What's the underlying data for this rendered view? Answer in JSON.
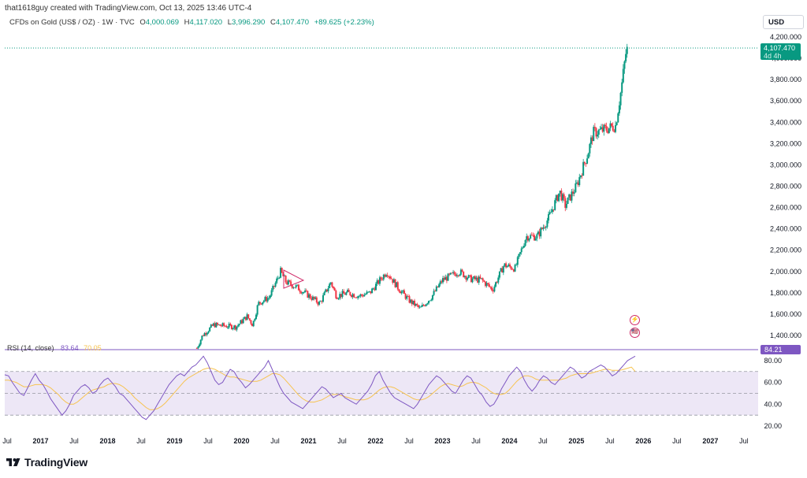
{
  "header": {
    "credit": "that1618guy created with TradingView.com, Oct 13, 2025 13:46 UTC-4",
    "symbol": "CFDs on Gold (US$ / OZ) · 1W · TVC",
    "ohlc": {
      "o_label": "O",
      "o": "4,000.069",
      "h_label": "H",
      "h": "4,117.020",
      "l_label": "L",
      "l": "3,996.290",
      "c_label": "C",
      "c": "4,107.470",
      "change": "+89.625 (+2.23%)"
    }
  },
  "currency_button": "USD",
  "last_price": {
    "value": "4,107.470",
    "countdown": "4d 4h"
  },
  "rsi": {
    "label": "RSI (14, close)",
    "value": "83.64",
    "ma_value": "70.05",
    "axis_value": "84.21"
  },
  "brand": {
    "name": "TradingView"
  },
  "events": [
    {
      "icon": "lightning-icon",
      "glyph": "⚡"
    },
    {
      "icon": "us-flag-icon",
      "glyph": "🇺🇸"
    }
  ],
  "colors": {
    "up": "#089981",
    "down": "#f23645",
    "rsi_line": "#7e57c2",
    "rsi_ma": "#f7c34f",
    "rsi_band": "#ede7f6"
  },
  "chart_data": [
    {
      "type": "candlestick",
      "title": "CFDs on Gold (US$ / OZ) · 1W · TVC",
      "ylabel": "USD",
      "ylim": [
        1300,
        4250
      ],
      "y_ticks": [
        "1,400.000",
        "1,600.000",
        "1,800.000",
        "2,000.000",
        "2,200.000",
        "2,400.000",
        "2,600.000",
        "2,800.000",
        "3,000.000",
        "3,200.000",
        "3,400.000",
        "3,600.000",
        "3,800.000",
        "4,000.000",
        "4,200.000"
      ],
      "x_ticks": [
        "Jul",
        "2017",
        "Jul",
        "2018",
        "Jul",
        "2019",
        "Jul",
        "2020",
        "Jul",
        "2021",
        "Jul",
        "2022",
        "Jul",
        "2023",
        "Jul",
        "2024",
        "Jul",
        "2025",
        "Jul",
        "2026",
        "Jul",
        "2027",
        "Jul"
      ],
      "x_range": [
        "2016-07",
        "2027-08"
      ],
      "first_date": "2019-05-06",
      "last_close": 4107.47,
      "price_path": [
        [
          "2019-05",
          1280
        ],
        [
          "2019-06",
          1400
        ],
        [
          "2019-08",
          1500
        ],
        [
          "2019-10",
          1490
        ],
        [
          "2019-12",
          1480
        ],
        [
          "2020-02",
          1580
        ],
        [
          "2020-03",
          1500
        ],
        [
          "2020-04",
          1700
        ],
        [
          "2020-06",
          1760
        ],
        [
          "2020-08",
          2000
        ],
        [
          "2020-09",
          1900
        ],
        [
          "2020-11",
          1850
        ],
        [
          "2021-03",
          1700
        ],
        [
          "2021-05",
          1900
        ],
        [
          "2021-06",
          1770
        ],
        [
          "2021-08",
          1800
        ],
        [
          "2021-10",
          1770
        ],
        [
          "2021-12",
          1800
        ],
        [
          "2022-03",
          2000
        ],
        [
          "2022-05",
          1850
        ],
        [
          "2022-07",
          1730
        ],
        [
          "2022-09",
          1650
        ],
        [
          "2022-11",
          1760
        ],
        [
          "2023-01",
          1920
        ],
        [
          "2023-04",
          2000
        ],
        [
          "2023-06",
          1930
        ],
        [
          "2023-08",
          1920
        ],
        [
          "2023-10",
          1830
        ],
        [
          "2023-12",
          2060
        ],
        [
          "2024-02",
          2030
        ],
        [
          "2024-04",
          2330
        ],
        [
          "2024-06",
          2330
        ],
        [
          "2024-08",
          2500
        ],
        [
          "2024-10",
          2750
        ],
        [
          "2024-11",
          2620
        ],
        [
          "2025-01",
          2800
        ],
        [
          "2025-03",
          3100
        ],
        [
          "2025-04",
          3300
        ],
        [
          "2025-06",
          3330
        ],
        [
          "2025-08",
          3370
        ],
        [
          "2025-09",
          3700
        ],
        [
          "2025-10",
          4107.47
        ]
      ]
    },
    {
      "type": "line",
      "title": "RSI (14, close)",
      "ylim": [
        15,
        90
      ],
      "y_ticks": [
        "20.00",
        "40.00",
        "60.00",
        "80.00"
      ],
      "levels": [
        70,
        50,
        30
      ],
      "series": [
        {
          "name": "RSI",
          "values": [
            67,
            66,
            60,
            55,
            50,
            48,
            55,
            62,
            68,
            62,
            58,
            52,
            45,
            40,
            35,
            30,
            34,
            40,
            48,
            52,
            56,
            58,
            55,
            50,
            52,
            58,
            62,
            64,
            60,
            56,
            50,
            48,
            44,
            40,
            36,
            32,
            28,
            26,
            30,
            34,
            40,
            46,
            52,
            58,
            62,
            66,
            68,
            66,
            70,
            74,
            76,
            80,
            84,
            78,
            70,
            62,
            58,
            60,
            66,
            72,
            70,
            64,
            60,
            55,
            58,
            62,
            66,
            70,
            74,
            80,
            72,
            64,
            56,
            50,
            46,
            42,
            40,
            38,
            36,
            40,
            44,
            48,
            52,
            56,
            54,
            50,
            46,
            48,
            50,
            46,
            44,
            42,
            40,
            44,
            48,
            52,
            58,
            66,
            70,
            62,
            56,
            50,
            46,
            44,
            42,
            40,
            38,
            36,
            40,
            46,
            52,
            58,
            62,
            66,
            64,
            60,
            56,
            52,
            50,
            56,
            62,
            66,
            64,
            58,
            52,
            48,
            42,
            38,
            40,
            46,
            54,
            60,
            66,
            70,
            74,
            70,
            62,
            56,
            52,
            56,
            62,
            66,
            64,
            60,
            58,
            62,
            66,
            70,
            74,
            72,
            68,
            64,
            66,
            70,
            72,
            74,
            76,
            74,
            70,
            66,
            68,
            72,
            76,
            80,
            82,
            84
          ]
        },
        {
          "name": "RSI MA",
          "values": [
            62,
            62,
            61,
            60,
            58,
            56,
            56,
            57,
            58,
            58,
            58,
            57,
            55,
            52,
            49,
            45,
            42,
            40,
            40,
            42,
            45,
            48,
            51,
            53,
            54,
            55,
            56,
            58,
            59,
            59,
            58,
            56,
            53,
            50,
            46,
            43,
            40,
            37,
            35,
            35,
            36,
            38,
            41,
            45,
            49,
            53,
            57,
            61,
            64,
            66,
            68,
            70,
            72,
            73,
            73,
            72,
            70,
            68,
            66,
            65,
            65,
            64,
            63,
            62,
            61,
            61,
            61,
            62,
            64,
            66,
            68,
            68,
            67,
            64,
            60,
            56,
            52,
            48,
            45,
            43,
            42,
            42,
            43,
            44,
            46,
            48,
            49,
            49,
            48,
            47,
            46,
            45,
            44,
            44,
            44,
            45,
            47,
            50,
            53,
            55,
            56,
            56,
            55,
            53,
            51,
            49,
            47,
            45,
            44,
            44,
            45,
            47,
            50,
            53,
            56,
            58,
            59,
            58,
            57,
            56,
            57,
            59,
            60,
            60,
            59,
            57,
            55,
            52,
            50,
            49,
            49,
            50,
            53,
            57,
            61,
            64,
            66,
            66,
            65,
            63,
            62,
            62,
            62,
            62,
            62,
            62,
            63,
            64,
            66,
            67,
            68,
            68,
            68,
            68,
            69,
            70,
            71,
            72,
            72,
            71,
            71,
            71,
            72,
            73,
            74,
            70
          ]
        }
      ]
    }
  ]
}
